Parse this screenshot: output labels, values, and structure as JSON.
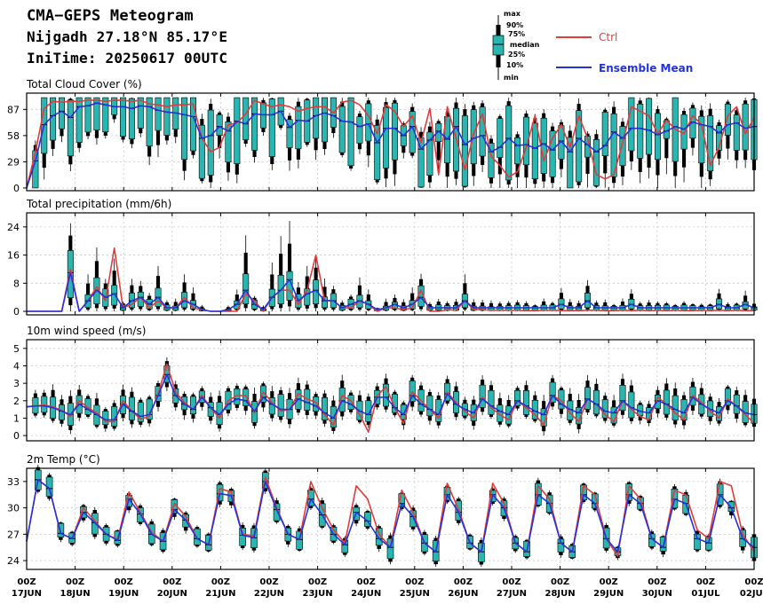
{
  "header": {
    "title": "CMA−GEPS Meteogram",
    "location": "Nijgadh 27.18°N 85.17°E",
    "init_time": "IniTime: 20250617 00UTC"
  },
  "legend": {
    "box_labels": [
      "max",
      "90%",
      "75%",
      "median",
      "25%",
      "10%",
      "min"
    ],
    "ctrl_label": "Ctrl",
    "mean_label": "Ensemble Mean",
    "ctrl_color": "#e03c3c",
    "mean_color": "#2233dd",
    "box_color": "#2ab5b0"
  },
  "x_axis": {
    "hour_label": "00Z",
    "dates": [
      "17JUN",
      "18JUN",
      "19JUN",
      "20JUN",
      "21JUN",
      "22JUN",
      "23JUN",
      "24JUN",
      "25JUN",
      "26JUN",
      "27JUN",
      "28JUN",
      "29JUN",
      "30JUN",
      "01JUL",
      "02JUL"
    ]
  },
  "chart_data": [
    {
      "type": "box",
      "title": "Total Cloud Cover (%)",
      "ylim": [
        -3,
        105
      ],
      "yticks": [
        0,
        29,
        58,
        87
      ],
      "grid": true,
      "ctrl": [
        0,
        40,
        88,
        96,
        95,
        96,
        96,
        97,
        97,
        96,
        97,
        97,
        96,
        97,
        93,
        92,
        90,
        92,
        92,
        93,
        55,
        40,
        45,
        70,
        72,
        82,
        97,
        93,
        90,
        92,
        90,
        85,
        88,
        90,
        90,
        83,
        95,
        97,
        92,
        80,
        60,
        92,
        85,
        68,
        80,
        50,
        88,
        15,
        90,
        55,
        20,
        60,
        82,
        35,
        25,
        12,
        18,
        45,
        80,
        30,
        55,
        70,
        45,
        80,
        55,
        15,
        10,
        15,
        50,
        90,
        85,
        80,
        60,
        75,
        65,
        60,
        80,
        70,
        25,
        45,
        80,
        90,
        60,
        78
      ],
      "mean": [
        0,
        30,
        70,
        80,
        85,
        78,
        90,
        91,
        94,
        92,
        90,
        90,
        88,
        91,
        90,
        86,
        84,
        83,
        81,
        79,
        55,
        58,
        68,
        63,
        74,
        71,
        82,
        81,
        81,
        85,
        67,
        75,
        74,
        80,
        83,
        80,
        74,
        73,
        68,
        71,
        50,
        66,
        66,
        58,
        68,
        43,
        53,
        63,
        54,
        68,
        48,
        55,
        58,
        40,
        45,
        55,
        47,
        48,
        44,
        49,
        42,
        52,
        40,
        55,
        48,
        40,
        47,
        62,
        55,
        66,
        66,
        64,
        59,
        63,
        68,
        65,
        73,
        70,
        68,
        61,
        70,
        72,
        66,
        68
      ]
    },
    {
      "type": "box",
      "title": "Total precipitation (mm/6h)",
      "ylim": [
        -1,
        28
      ],
      "yticks": [
        0,
        8,
        16,
        24
      ],
      "grid": true,
      "ctrl": [
        0,
        0,
        0,
        0,
        0,
        12,
        0,
        3,
        7,
        3,
        18,
        1,
        2,
        4,
        1,
        3,
        1,
        1,
        4,
        1,
        0.5,
        0,
        0,
        0,
        0,
        5,
        3,
        0,
        4,
        6,
        6,
        2,
        6,
        16,
        3,
        3,
        1,
        1,
        3,
        2,
        0,
        1,
        1,
        0.5,
        1,
        6,
        0,
        0,
        0.5,
        0.3,
        3,
        0.5,
        0.5,
        0.3,
        0.3,
        0.3,
        0.3,
        0.2,
        0.2,
        0.3,
        0.3,
        0.2,
        0.2,
        0.2,
        0.3,
        0.3,
        0.2,
        0.2,
        0.3,
        0.2,
        0.3,
        0.2,
        0.3,
        0.2,
        0.3,
        0.2,
        0.2,
        0.3,
        0.2,
        0.3,
        0.2,
        0.3,
        0.2,
        0.2
      ],
      "mean": [
        0,
        0,
        0,
        0,
        0,
        11,
        0,
        3,
        6,
        4,
        5,
        1,
        3,
        4,
        2,
        4,
        1,
        1,
        3,
        2,
        0.5,
        0,
        0,
        0.5,
        2,
        6,
        2,
        0.5,
        4,
        6,
        9,
        3,
        5,
        6,
        3,
        3,
        1,
        2,
        3,
        2,
        0.5,
        1,
        2,
        1,
        2,
        4,
        1,
        1,
        1,
        1,
        3,
        1,
        1,
        1,
        1,
        1,
        1,
        1,
        1,
        1,
        1,
        2,
        1,
        1,
        3,
        1,
        1,
        1,
        1,
        2,
        1,
        1,
        1,
        1,
        1,
        1,
        1,
        1,
        1,
        2,
        1,
        1,
        2,
        1
      ]
    },
    {
      "type": "box",
      "title": "10m wind speed (m/s)",
      "ylim": [
        -0.3,
        5.5
      ],
      "yticks": [
        0,
        1,
        2,
        3,
        4,
        5
      ],
      "grid": true,
      "ctrl": [
        1.65,
        1.7,
        1.75,
        1.65,
        1.45,
        1.1,
        2.0,
        1.6,
        1.3,
        0.8,
        0.8,
        2.0,
        1.4,
        0.95,
        1.1,
        2.4,
        4.1,
        2.5,
        1.9,
        1.5,
        2.3,
        1.6,
        1.0,
        2.0,
        2.3,
        2.3,
        1.3,
        2.5,
        1.9,
        1.4,
        1.5,
        2.4,
        2.1,
        1.9,
        1.2,
        0.6,
        2.3,
        2.0,
        1.2,
        0.2,
        2.3,
        2.8,
        1.6,
        0.7,
        2.5,
        2.0,
        1.5,
        1.0,
        2.5,
        1.9,
        1.4,
        1.0,
        2.2,
        1.6,
        1.2,
        0.9,
        2.0,
        1.6,
        1.2,
        0.6,
        2.3,
        2.0,
        1.3,
        0.8,
        2.1,
        1.8,
        1.2,
        0.8,
        2.0,
        1.5,
        1.1,
        0.9,
        2.2,
        1.8,
        1.3,
        0.9,
        2.3,
        1.9,
        1.4,
        1.0,
        2.1,
        1.7,
        1.2,
        0.7
      ],
      "mean": [
        1.65,
        1.7,
        1.7,
        1.6,
        1.4,
        1.2,
        1.8,
        1.5,
        1.2,
        0.9,
        0.9,
        1.8,
        1.4,
        1.1,
        1.2,
        2.3,
        3.5,
        2.3,
        1.8,
        1.5,
        2.2,
        1.6,
        1.2,
        1.8,
        2.1,
        2.0,
        1.4,
        2.2,
        1.8,
        1.5,
        1.5,
        2.1,
        1.9,
        1.7,
        1.3,
        1.0,
        2.0,
        1.8,
        1.4,
        1.2,
        2.2,
        2.2,
        1.6,
        1.2,
        2.3,
        1.8,
        1.5,
        1.2,
        2.4,
        1.8,
        1.5,
        1.3,
        2.1,
        1.7,
        1.4,
        1.2,
        2.0,
        1.7,
        1.4,
        1.2,
        2.3,
        1.8,
        1.5,
        1.3,
        2.1,
        1.8,
        1.4,
        1.3,
        2.0,
        1.6,
        1.4,
        1.3,
        2.0,
        1.8,
        1.5,
        1.3,
        2.2,
        1.8,
        1.5,
        1.3,
        2.0,
        1.7,
        1.3,
        1.2
      ]
    },
    {
      "type": "box",
      "title": "2m Temp (°C)",
      "ylim": [
        23,
        34.5
      ],
      "yticks": [
        24,
        27,
        30,
        33
      ],
      "grid": true,
      "ctrl": [
        26.2,
        33.2,
        32.2,
        27.1,
        26.5,
        30.0,
        28.5,
        27.0,
        26.4,
        31.8,
        29.5,
        27.2,
        26.2,
        30.5,
        29.0,
        26.5,
        25.8,
        32.2,
        31.8,
        27.0,
        26.8,
        33.5,
        30.0,
        27.0,
        26.4,
        33.0,
        30.0,
        27.5,
        26.0,
        32.5,
        31.0,
        27.0,
        25.5,
        32.0,
        29.5,
        26.0,
        25.0,
        32.8,
        29.8,
        26.0,
        25.0,
        32.8,
        30.5,
        26.0,
        25.0,
        32.5,
        31.0,
        26.0,
        25.0,
        32.5,
        31.5,
        26.5,
        24.5,
        32.5,
        31.0,
        26.5,
        25.5,
        32.0,
        31.5,
        27.5,
        26.5,
        33.0,
        32.5,
        27.0,
        25.0
      ],
      "mean": [
        26.2,
        33.2,
        32.2,
        27.1,
        26.5,
        29.5,
        28.3,
        27.0,
        26.3,
        31.0,
        29.3,
        27.0,
        26.2,
        29.8,
        28.6,
        26.5,
        25.8,
        31.6,
        31.4,
        26.9,
        26.6,
        33.0,
        29.8,
        27.0,
        26.4,
        31.0,
        29.2,
        27.0,
        25.8,
        29.5,
        28.5,
        26.5,
        25.5,
        30.5,
        29.0,
        26.0,
        25.0,
        31.5,
        29.5,
        26.0,
        25.0,
        31.5,
        30.0,
        26.0,
        25.0,
        31.5,
        30.5,
        26.0,
        25.0,
        31.5,
        30.5,
        26.5,
        25.0,
        31.5,
        30.5,
        26.5,
        25.5,
        31.0,
        30.5,
        26.5,
        26.0,
        31.5,
        30.0,
        26.5,
        25.5
      ]
    }
  ]
}
